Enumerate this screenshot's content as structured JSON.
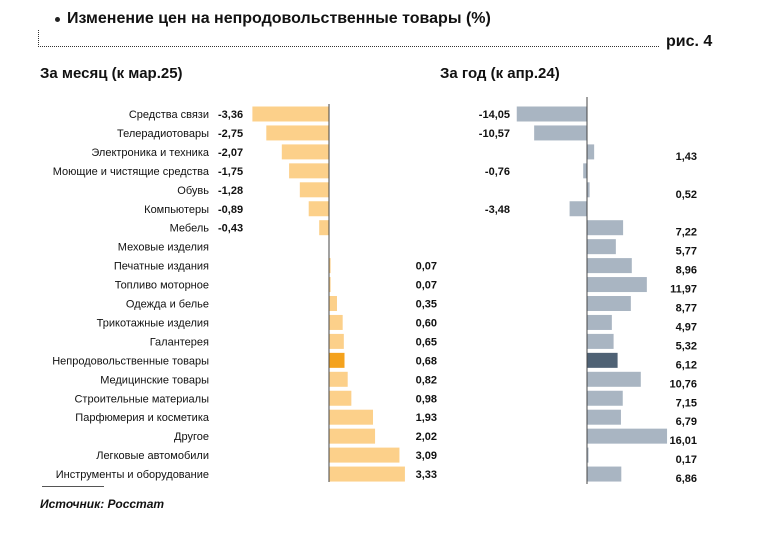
{
  "header": {
    "title": "Изменение цен на непродовольственные товары (%)",
    "figure_label": "рис. 4"
  },
  "panels": {
    "left_title": "За месяц (к мар.25)",
    "right_title": "За год (к апр.24)"
  },
  "source": "Источник: Росстат",
  "colors": {
    "month_bar": "#FCD08A",
    "month_highlight": "#F4A21D",
    "year_bar": "#A9B5C2",
    "year_highlight": "#4F6275"
  },
  "chart_data": [
    {
      "type": "bar",
      "orientation": "horizontal",
      "title": "За месяц (к мар.25)",
      "categories": [
        "Средства связи",
        "Телерадиотовары",
        "Электроника и техника",
        "Моющие и чистящие средства",
        "Обувь",
        "Компьютеры",
        "Мебель",
        "Меховые изделия",
        "Печатные издания",
        "Топливо моторное",
        "Одежда и белье",
        "Трикотажные изделия",
        "Галантерея",
        "Непродовольственные товары",
        "Медицинские товары",
        "Строительные материалы",
        "Парфюмерия и косметика",
        "Другое",
        "Легковые автомобили",
        "Инструменты и оборудование"
      ],
      "values": [
        -3.36,
        -2.75,
        -2.07,
        -1.75,
        -1.28,
        -0.89,
        -0.43,
        null,
        0.07,
        0.07,
        0.35,
        0.6,
        0.65,
        0.68,
        0.82,
        0.98,
        1.93,
        2.02,
        3.09,
        3.33
      ],
      "labels": [
        "-3,36",
        "-2,75",
        "-2,07",
        "-1,75",
        "-1,28",
        "-0,89",
        "-0,43",
        "",
        "0,07",
        "0,07",
        "0,35",
        "0,60",
        "0,65",
        "0,68",
        "0,82",
        "0,98",
        "1,93",
        "2,02",
        "3,09",
        "3,33"
      ],
      "highlight_index": 13
    },
    {
      "type": "bar",
      "orientation": "horizontal",
      "title": "За год (к апр.24)",
      "categories": [
        "Средства связи",
        "Телерадиотовары",
        "Электроника и техника",
        "Моющие и чистящие средства",
        "Обувь",
        "Компьютеры",
        "Мебель",
        "Меховые изделия",
        "Печатные издания",
        "Топливо моторное",
        "Одежда и белье",
        "Трикотажные изделия",
        "Галантерея",
        "Непродовольственные товары",
        "Медицинские товары",
        "Строительные материалы",
        "Парфюмерия и косметика",
        "Другое",
        "Легковые автомобили",
        "Инструменты и оборудование"
      ],
      "values": [
        -14.05,
        -10.57,
        1.43,
        -0.76,
        0.52,
        -3.48,
        7.22,
        5.77,
        8.96,
        11.97,
        8.77,
        4.97,
        5.32,
        6.12,
        10.76,
        7.15,
        6.79,
        16.01,
        0.17,
        6.86
      ],
      "labels": [
        "-14,05",
        "-10,57",
        "1,43",
        "-0,76",
        "0,52",
        "-3,48",
        "7,22",
        "5,77",
        "8,96",
        "11,97",
        "8,77",
        "4,97",
        "5,32",
        "6,12",
        "10,76",
        "7,15",
        "6,79",
        "16,01",
        "0,17",
        "6,86"
      ],
      "highlight_index": 13
    }
  ]
}
